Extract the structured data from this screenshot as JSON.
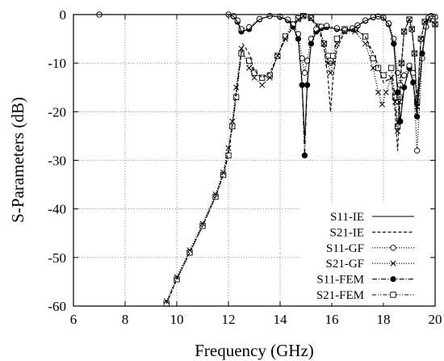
{
  "chart_data": {
    "type": "line",
    "title": "",
    "xlabel": "Frequency (GHz)",
    "ylabel": "S-Parameters (dB)",
    "xlim": [
      6,
      20
    ],
    "ylim": [
      -60,
      0
    ],
    "xticks": [
      "6",
      "8",
      "10",
      "12",
      "14",
      "16",
      "18",
      "20"
    ],
    "yticks": [
      "0",
      "-10",
      "-20",
      "-30",
      "-40",
      "-50",
      "-60"
    ],
    "grid": true,
    "legend_position": "bottom-right",
    "series": [
      {
        "name": "S11-IE",
        "style": "solid",
        "marker": "none",
        "x": [
          7.0,
          12.0,
          12.2,
          12.35,
          12.5,
          12.8,
          13.2,
          13.6,
          14.0,
          14.3,
          14.5,
          14.7,
          14.85,
          14.95,
          15.05,
          15.2,
          15.4,
          15.6,
          15.8,
          16.2,
          16.5,
          16.8,
          17.0,
          17.3,
          17.6,
          17.8,
          18.0,
          18.2,
          18.4,
          18.55,
          18.65,
          18.8,
          19.0,
          19.15,
          19.3,
          19.5,
          19.65,
          19.75,
          19.85,
          20.0
        ],
        "y": [
          0,
          0,
          -0.4,
          -1.5,
          -3.5,
          -3.0,
          -1.0,
          -0.3,
          -0.5,
          -1.2,
          -2.5,
          -5.0,
          -14.0,
          -26.0,
          -14.0,
          -6.0,
          -3.5,
          -2.8,
          -2.6,
          -3.0,
          -3.4,
          -3.0,
          -2.3,
          -1.3,
          -0.6,
          -0.4,
          -0.7,
          -2.0,
          -6.0,
          -16.0,
          -22.0,
          -15.0,
          -11.0,
          -14.0,
          -20.0,
          -8.0,
          -2.5,
          -0.6,
          -0.3,
          -0.5
        ]
      },
      {
        "name": "S21-IE",
        "style": "dashed",
        "marker": "none",
        "x": [
          9.6,
          10.0,
          10.5,
          11.0,
          11.5,
          11.8,
          12.0,
          12.2,
          12.35,
          12.55,
          12.8,
          13.0,
          13.3,
          13.6,
          13.9,
          14.2,
          14.5,
          14.7,
          14.9,
          15.2,
          15.5,
          15.7,
          15.85,
          15.95,
          16.05,
          16.2,
          16.5,
          16.9,
          17.3,
          17.7,
          18.0,
          18.3,
          18.45,
          18.55,
          18.62,
          18.7,
          18.8,
          19.0,
          19.1,
          19.2,
          19.3,
          19.45,
          19.6,
          19.75,
          20.0
        ],
        "y": [
          -59.5,
          -54.5,
          -49.0,
          -43.5,
          -37.5,
          -33.0,
          -28.0,
          -21.0,
          -14.0,
          -6.0,
          -8.0,
          -11.5,
          -13.0,
          -12.0,
          -8.5,
          -5.0,
          -2.5,
          -1.2,
          -0.5,
          -1.0,
          -3.0,
          -7.0,
          -13.0,
          -20.0,
          -13.0,
          -7.0,
          -3.5,
          -3.0,
          -4.5,
          -9.0,
          -14.0,
          -13.0,
          -20.0,
          -28.0,
          -20.0,
          -10.0,
          -3.5,
          -1.0,
          -3.0,
          -8.0,
          -20.0,
          -5.0,
          -1.5,
          -1.0,
          -2.0
        ]
      },
      {
        "name": "S11-GF",
        "style": "dotted",
        "marker": "circle",
        "x": [
          7.0,
          12.0,
          12.2,
          12.35,
          12.5,
          12.8,
          13.2,
          13.6,
          14.0,
          14.3,
          14.5,
          14.7,
          14.85,
          14.95,
          15.05,
          15.2,
          15.4,
          15.6,
          15.8,
          16.2,
          16.5,
          16.8,
          17.0,
          17.3,
          17.6,
          17.8,
          18.0,
          18.2,
          18.4,
          18.55,
          18.65,
          18.8,
          19.0,
          19.15,
          19.3,
          19.5,
          19.65,
          19.75,
          19.85,
          20.0
        ],
        "y": [
          0,
          0,
          -0.3,
          -1.2,
          -3.0,
          -2.6,
          -0.9,
          -0.3,
          -0.4,
          -1.0,
          -2.0,
          -4.0,
          -9.0,
          -12.0,
          -9.5,
          -5.0,
          -3.0,
          -2.5,
          -2.3,
          -2.8,
          -3.2,
          -2.8,
          -2.2,
          -1.2,
          -0.5,
          -0.4,
          -0.6,
          -1.8,
          -5.0,
          -12.0,
          -14.5,
          -12.5,
          -10.5,
          -12.0,
          -28.0,
          -9.0,
          -2.5,
          -0.6,
          -0.3,
          -0.5
        ]
      },
      {
        "name": "S21-GF",
        "style": "dotted",
        "marker": "x",
        "x": [
          9.6,
          10.0,
          10.5,
          11.0,
          11.5,
          11.8,
          12.0,
          12.15,
          12.3,
          12.5,
          12.8,
          13.0,
          13.3,
          13.6,
          13.9,
          14.2,
          14.5,
          14.7,
          14.9,
          15.2,
          15.5,
          15.7,
          15.85,
          15.95,
          16.05,
          16.2,
          16.5,
          16.9,
          17.3,
          17.6,
          17.8,
          17.95,
          18.1,
          18.3,
          18.45,
          18.55,
          18.62,
          18.7,
          18.8,
          19.0,
          19.1,
          19.2,
          19.3,
          19.45,
          19.6,
          19.75,
          20.0
        ],
        "y": [
          -59.0,
          -54.0,
          -48.5,
          -43.0,
          -37.0,
          -32.5,
          -27.5,
          -22.0,
          -15.0,
          -7.0,
          -11.0,
          -13.0,
          -14.5,
          -13.0,
          -8.5,
          -5.0,
          -2.5,
          -1.0,
          -0.3,
          -0.8,
          -2.5,
          -6.0,
          -10.0,
          -12.0,
          -10.0,
          -6.0,
          -3.5,
          -3.5,
          -6.0,
          -11.0,
          -16.0,
          -18.5,
          -16.0,
          -13.0,
          -18.0,
          -24.0,
          -18.0,
          -10.0,
          -3.5,
          -1.0,
          -3.0,
          -8.0,
          -19.0,
          -5.0,
          -1.5,
          -1.0,
          -2.0
        ]
      },
      {
        "name": "S11-FEM",
        "style": "dashdot",
        "marker": "filled-circle",
        "x": [
          7.0,
          12.0,
          12.2,
          12.35,
          12.5,
          12.8,
          13.2,
          13.6,
          14.0,
          14.3,
          14.5,
          14.7,
          14.85,
          14.95,
          15.05,
          15.2,
          15.4,
          15.6,
          15.8,
          16.2,
          16.5,
          16.8,
          17.0,
          17.3,
          17.6,
          17.8,
          18.0,
          18.2,
          18.4,
          18.55,
          18.65,
          18.8,
          19.0,
          19.15,
          19.3,
          19.5,
          19.65,
          19.75,
          19.85,
          20.0
        ],
        "y": [
          0,
          0,
          -0.4,
          -1.5,
          -3.5,
          -3.0,
          -1.0,
          -0.3,
          -0.5,
          -1.2,
          -2.5,
          -5.0,
          -14.5,
          -29.0,
          -14.5,
          -6.0,
          -3.5,
          -2.8,
          -2.6,
          -3.0,
          -3.4,
          -3.0,
          -2.3,
          -1.3,
          -0.6,
          -0.4,
          -0.7,
          -2.0,
          -6.0,
          -16.0,
          -22.0,
          -15.0,
          -11.0,
          -14.0,
          -21.0,
          -8.0,
          -2.5,
          -0.6,
          -0.3,
          -0.5
        ]
      },
      {
        "name": "S21-FEM",
        "style": "dashdotdot",
        "marker": "square",
        "x": [
          9.6,
          10.0,
          10.5,
          11.0,
          11.5,
          11.8,
          12.0,
          12.15,
          12.3,
          12.5,
          12.8,
          13.0,
          13.3,
          13.6,
          13.9,
          14.2,
          14.5,
          14.7,
          14.9,
          15.2,
          15.5,
          15.7,
          15.85,
          15.95,
          16.05,
          16.2,
          16.5,
          16.9,
          17.3,
          17.6,
          17.8,
          18.0,
          18.3,
          18.45,
          18.55,
          18.62,
          18.7,
          18.8,
          19.0,
          19.1,
          19.2,
          19.3,
          19.45,
          19.6,
          19.75,
          20.0
        ],
        "y": [
          -59.5,
          -54.5,
          -49.0,
          -43.5,
          -37.5,
          -33.0,
          -29.0,
          -23.0,
          -17.0,
          -8.0,
          -9.5,
          -12.0,
          -13.0,
          -12.5,
          -8.5,
          -4.5,
          -2.0,
          -0.8,
          -0.3,
          -0.7,
          -2.5,
          -6.0,
          -8.5,
          -9.5,
          -8.5,
          -5.0,
          -3.0,
          -3.0,
          -4.5,
          -9.0,
          -11.0,
          -12.5,
          -11.0,
          -17.0,
          -23.0,
          -17.0,
          -10.0,
          -3.5,
          -1.0,
          -3.0,
          -8.0,
          -18.0,
          -5.0,
          -1.5,
          -1.0,
          -2.0
        ]
      }
    ]
  }
}
